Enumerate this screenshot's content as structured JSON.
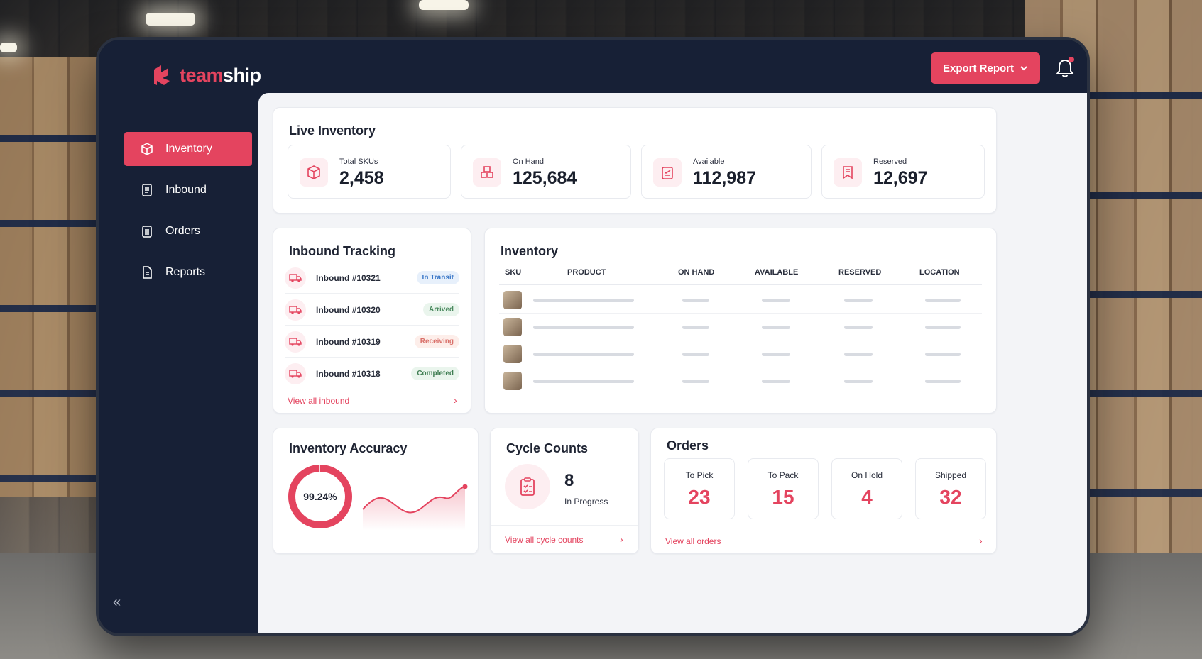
{
  "brand": {
    "name_part1": "team",
    "name_part2": "ship",
    "accent": "#e4445f"
  },
  "header": {
    "export_label": "Export Report",
    "bell_icon": "bell-icon"
  },
  "sidebar": {
    "items": [
      {
        "label": "Inventory",
        "icon": "box-icon",
        "active": true
      },
      {
        "label": "Inbound",
        "icon": "receipt-icon",
        "active": false
      },
      {
        "label": "Orders",
        "icon": "clipboard-icon",
        "active": false
      },
      {
        "label": "Reports",
        "icon": "document-icon",
        "active": false
      }
    ],
    "collapse": "«"
  },
  "live_inventory": {
    "title": "Live Inventory",
    "stats": [
      {
        "label": "Total SKUs",
        "value": "2,458",
        "icon": "cube-icon"
      },
      {
        "label": "On Hand",
        "value": "125,684",
        "icon": "boxes-icon"
      },
      {
        "label": "Available",
        "value": "112,987",
        "icon": "clipboard-check-icon"
      },
      {
        "label": "Reserved",
        "value": "12,697",
        "icon": "bookmark-list-icon"
      }
    ]
  },
  "inbound_tracking": {
    "title": "Inbound Tracking",
    "rows": [
      {
        "name": "Inbound #10321",
        "status": "In Transit"
      },
      {
        "name": "Inbound #10320",
        "status": "Arrived"
      },
      {
        "name": "Inbound #10319",
        "status": "Receiving"
      },
      {
        "name": "Inbound #10318",
        "status": "Completed"
      }
    ],
    "view_all": "View all inbound"
  },
  "inventory_table": {
    "title": "Inventory",
    "columns": [
      "SKU",
      "PRODUCT",
      "ON HAND",
      "AVAILABLE",
      "RESERVED",
      "LOCATION"
    ]
  },
  "accuracy": {
    "title": "Inventory Accuracy",
    "value": "99.24%",
    "fraction": 0.9924
  },
  "cycle_counts": {
    "title": "Cycle Counts",
    "count": "8",
    "status": "In Progress",
    "view_all": "View all cycle counts"
  },
  "orders": {
    "title": "Orders",
    "boxes": [
      {
        "label": "To Pick",
        "value": "23"
      },
      {
        "label": "To Pack",
        "value": "15"
      },
      {
        "label": "On Hold",
        "value": "4"
      },
      {
        "label": "Shipped",
        "value": "32"
      }
    ],
    "view_all": "View all orders"
  }
}
